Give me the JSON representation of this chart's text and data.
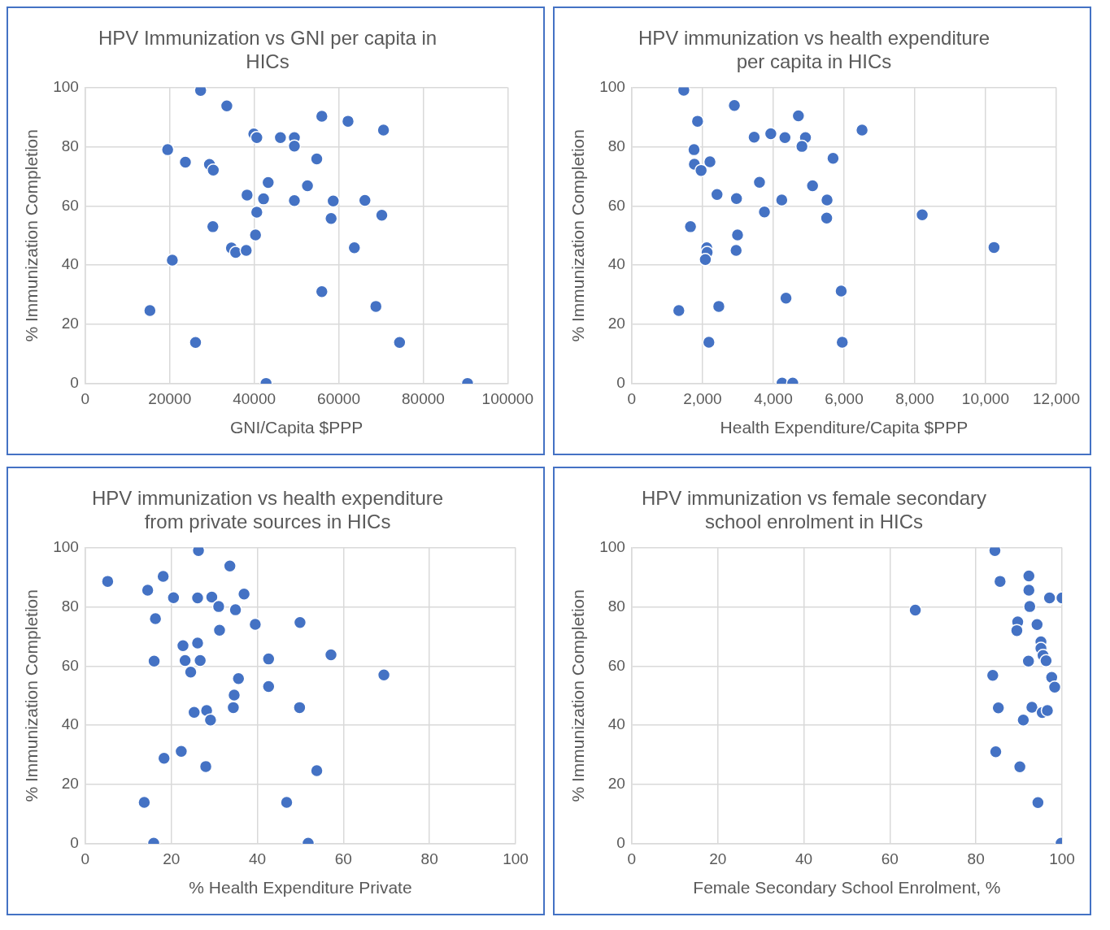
{
  "chart_data": [
    {
      "type": "scatter",
      "title": "HPV Immunization vs GNI per capita in HICs",
      "xlabel": "GNI/Capita $PPP",
      "ylabel": "% Immunization Completion",
      "color": "#4472c4",
      "marker": "circle",
      "grid": true,
      "x": [
        27300,
        33500,
        56000,
        62200,
        70600,
        39900,
        40600,
        46200,
        49500,
        49500,
        19500,
        54800,
        23700,
        29400,
        30300,
        43300,
        52600,
        38300,
        42200,
        49500,
        58700,
        66200,
        40600,
        70200,
        58200,
        30200,
        40300,
        34600,
        35600,
        38100,
        63700,
        20600,
        56000,
        68800,
        15300,
        26100,
        74400,
        42800,
        90500
      ],
      "values": [
        99,
        93.8,
        90.3,
        88.6,
        85.6,
        84.3,
        83.1,
        83.1,
        83.1,
        80.2,
        79,
        75.9,
        74.8,
        74,
        72.1,
        67.9,
        66.8,
        63.7,
        62.4,
        61.8,
        61.7,
        61.9,
        57.9,
        56.9,
        55.8,
        53,
        50.2,
        45.8,
        44.3,
        45,
        45.9,
        41.7,
        31.1,
        26.1,
        24.7,
        13.9,
        13.9,
        0.1,
        0.1
      ],
      "xlim": [
        0,
        100000
      ],
      "xticks": [
        0,
        20000,
        40000,
        60000,
        80000,
        100000
      ],
      "ylim": [
        0,
        100
      ],
      "yticks": [
        0,
        20,
        40,
        60,
        80,
        100
      ]
    },
    {
      "type": "scatter",
      "title": "HPV immunization vs health expenditure per capita in HICs",
      "xlabel": "Health Expenditure/Capita $PPP",
      "ylabel": "% Immunization Completion",
      "color": "#4472c4",
      "marker": "circle",
      "grid": true,
      "x": [
        1470,
        2900,
        1860,
        4710,
        6510,
        3460,
        3930,
        4330,
        4910,
        4810,
        1760,
        5690,
        1770,
        2210,
        1960,
        3610,
        5110,
        2410,
        2960,
        4240,
        5520,
        3750,
        8210,
        5510,
        1660,
        2990,
        2120,
        2130,
        2950,
        2080,
        10240,
        5920,
        4360,
        2460,
        1330,
        2180,
        5950,
        4250,
        4550
      ],
      "values": [
        99.1,
        93.9,
        88.6,
        90.4,
        85.6,
        83.2,
        84.4,
        83.1,
        83.1,
        80.1,
        79,
        76.1,
        74.1,
        74.9,
        72,
        68,
        66.8,
        63.9,
        62.5,
        62,
        62,
        58,
        57,
        55.9,
        53,
        50.2,
        45.9,
        44.3,
        45,
        41.9,
        46,
        31.3,
        28.9,
        26.1,
        24.7,
        14,
        14,
        0.2,
        0.2
      ],
      "xlim": [
        0,
        12000
      ],
      "xticks": [
        {
          "value": 0,
          "label": "0"
        },
        {
          "value": 2000,
          "label": "2,000"
        },
        {
          "value": 4000,
          "label": "4,000"
        },
        {
          "value": 6000,
          "label": "6,000"
        },
        {
          "value": 8000,
          "label": "8,000"
        },
        {
          "value": 10000,
          "label": "10,000"
        },
        {
          "value": 12000,
          "label": "12,000"
        }
      ],
      "ylim": [
        0,
        100
      ],
      "yticks": [
        0,
        20,
        40,
        60,
        80,
        100
      ]
    },
    {
      "type": "scatter",
      "title": "HPV immunization vs health expenditure from private sources in HICs",
      "xlabel": "% Health Expenditure Private",
      "ylabel": "% Immunization Completion",
      "color": "#4472c4",
      "marker": "circle",
      "grid": true,
      "x": [
        26.3,
        33.6,
        5.2,
        18.1,
        14.5,
        20.5,
        26.1,
        29.4,
        31,
        36.9,
        34.9,
        16.3,
        39.5,
        49.9,
        31.2,
        22.7,
        26.1,
        57.1,
        16,
        23.2,
        26.7,
        42.6,
        24.5,
        69.4,
        35.6,
        42.6,
        34.6,
        34.4,
        49.8,
        25.3,
        28.2,
        29.1,
        18.3,
        22.3,
        28,
        53.8,
        13.7,
        46.8,
        15.9,
        51.8
      ],
      "values": [
        99,
        93.8,
        88.6,
        90.3,
        85.6,
        83.1,
        83,
        83.3,
        80.1,
        84.3,
        79,
        76,
        74.1,
        74.7,
        72.1,
        66.9,
        67.8,
        63.8,
        61.7,
        61.9,
        61.9,
        62.4,
        58,
        57,
        55.8,
        53.1,
        50.2,
        46,
        46,
        44.4,
        45,
        41.8,
        28.9,
        31.2,
        26.1,
        24.7,
        14,
        14,
        0.2,
        0.2
      ],
      "xlim": [
        0,
        100
      ],
      "xticks": [
        0,
        20,
        40,
        60,
        80,
        100
      ],
      "ylim": [
        0,
        100
      ],
      "yticks": [
        0,
        20,
        40,
        60,
        80,
        100
      ]
    },
    {
      "type": "scatter",
      "title": "HPV immunization vs female secondary school enrolment in HICs",
      "xlabel": "Female Secondary School Enrolment, %",
      "ylabel": "% Immunization Completion",
      "color": "#4472c4",
      "marker": "circle",
      "grid": true,
      "x": [
        84.4,
        85.6,
        92.3,
        92.3,
        97.1,
        100,
        92.5,
        65.9,
        89.7,
        89.5,
        94.2,
        95.1,
        95.1,
        95.6,
        96.3,
        92.2,
        83.9,
        97.6,
        98.3,
        85.2,
        93,
        95.4,
        96.6,
        91,
        84.6,
        90.2,
        94.4,
        99.8
      ],
      "values": [
        99,
        88.6,
        90.4,
        85.6,
        83,
        83,
        80.1,
        78.9,
        74.9,
        72,
        74,
        68.2,
        66,
        63.6,
        61.8,
        61.7,
        56.9,
        56.2,
        52.9,
        45.9,
        46.1,
        44.3,
        45,
        41.8,
        31.1,
        26,
        13.9,
        0.2
      ],
      "xlim": [
        0,
        100
      ],
      "xticks": [
        0,
        20,
        40,
        60,
        80,
        100
      ],
      "ylim": [
        0,
        100
      ],
      "yticks": [
        0,
        20,
        40,
        60,
        80,
        100
      ]
    }
  ]
}
